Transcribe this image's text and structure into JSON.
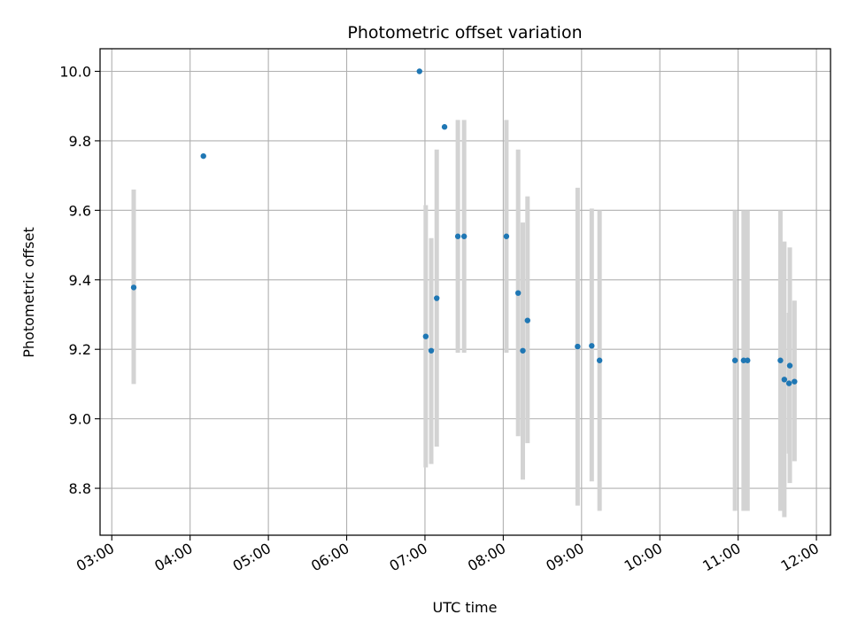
{
  "chart_data": {
    "type": "scatter",
    "title": "Photometric offset variation",
    "xlabel": "UTC time",
    "ylabel": "Photometric offset",
    "x_unit": "hours UTC",
    "xlim": [
      2.85,
      12.18
    ],
    "ylim": [
      8.665,
      10.065
    ],
    "x_ticks": [
      {
        "value": 3,
        "label": "03:00"
      },
      {
        "value": 4,
        "label": "04:00"
      },
      {
        "value": 5,
        "label": "05:00"
      },
      {
        "value": 6,
        "label": "06:00"
      },
      {
        "value": 7,
        "label": "07:00"
      },
      {
        "value": 8,
        "label": "08:00"
      },
      {
        "value": 9,
        "label": "09:00"
      },
      {
        "value": 10,
        "label": "10:00"
      },
      {
        "value": 11,
        "label": "11:00"
      },
      {
        "value": 12,
        "label": "12:00"
      }
    ],
    "y_ticks": [
      {
        "value": 8.8,
        "label": "8.8"
      },
      {
        "value": 9.0,
        "label": "9.0"
      },
      {
        "value": 9.2,
        "label": "9.2"
      },
      {
        "value": 9.4,
        "label": "9.4"
      },
      {
        "value": 9.6,
        "label": "9.6"
      },
      {
        "value": 9.8,
        "label": "9.8"
      },
      {
        "value": 10.0,
        "label": "10.0"
      }
    ],
    "grid": true,
    "marker_color": "#1f77b4",
    "errorbar_color": "#d3d3d3",
    "points": [
      {
        "x": 3.28,
        "y": 9.378,
        "ymin": 9.1,
        "ymax": 9.66
      },
      {
        "x": 4.17,
        "y": 9.756
      },
      {
        "x": 6.93,
        "y": 10.0
      },
      {
        "x": 7.01,
        "y": 9.237,
        "ymin": 8.86,
        "ymax": 9.615
      },
      {
        "x": 7.08,
        "y": 9.196,
        "ymin": 8.87,
        "ymax": 9.52
      },
      {
        "x": 7.15,
        "y": 9.347,
        "ymin": 8.92,
        "ymax": 9.775
      },
      {
        "x": 7.25,
        "y": 9.84
      },
      {
        "x": 7.42,
        "y": 9.525,
        "ymin": 9.19,
        "ymax": 9.86
      },
      {
        "x": 7.5,
        "y": 9.525,
        "ymin": 9.19,
        "ymax": 9.86
      },
      {
        "x": 8.04,
        "y": 9.525,
        "ymin": 9.19,
        "ymax": 9.86
      },
      {
        "x": 8.19,
        "y": 9.362,
        "ymin": 8.95,
        "ymax": 9.775
      },
      {
        "x": 8.25,
        "y": 9.196,
        "ymin": 8.825,
        "ymax": 9.565
      },
      {
        "x": 8.31,
        "y": 9.283,
        "ymin": 8.93,
        "ymax": 9.64
      },
      {
        "x": 8.95,
        "y": 9.208,
        "ymin": 8.75,
        "ymax": 9.665
      },
      {
        "x": 9.13,
        "y": 9.21,
        "ymin": 8.82,
        "ymax": 9.605
      },
      {
        "x": 9.23,
        "y": 9.168,
        "ymin": 8.735,
        "ymax": 9.6
      },
      {
        "x": 10.96,
        "y": 9.168,
        "ymin": 8.735,
        "ymax": 9.6
      },
      {
        "x": 11.07,
        "y": 9.168,
        "ymin": 8.735,
        "ymax": 9.6
      },
      {
        "x": 11.12,
        "y": 9.168,
        "ymin": 8.735,
        "ymax": 9.6
      },
      {
        "x": 11.54,
        "y": 9.168,
        "ymin": 8.735,
        "ymax": 9.6
      },
      {
        "x": 11.59,
        "y": 9.113,
        "ymin": 8.717,
        "ymax": 9.51
      },
      {
        "x": 11.65,
        "y": 9.102,
        "ymin": 8.9,
        "ymax": 9.305
      },
      {
        "x": 11.66,
        "y": 9.153,
        "ymin": 8.815,
        "ymax": 9.493
      },
      {
        "x": 11.72,
        "y": 9.107,
        "ymin": 8.878,
        "ymax": 9.34
      }
    ]
  }
}
